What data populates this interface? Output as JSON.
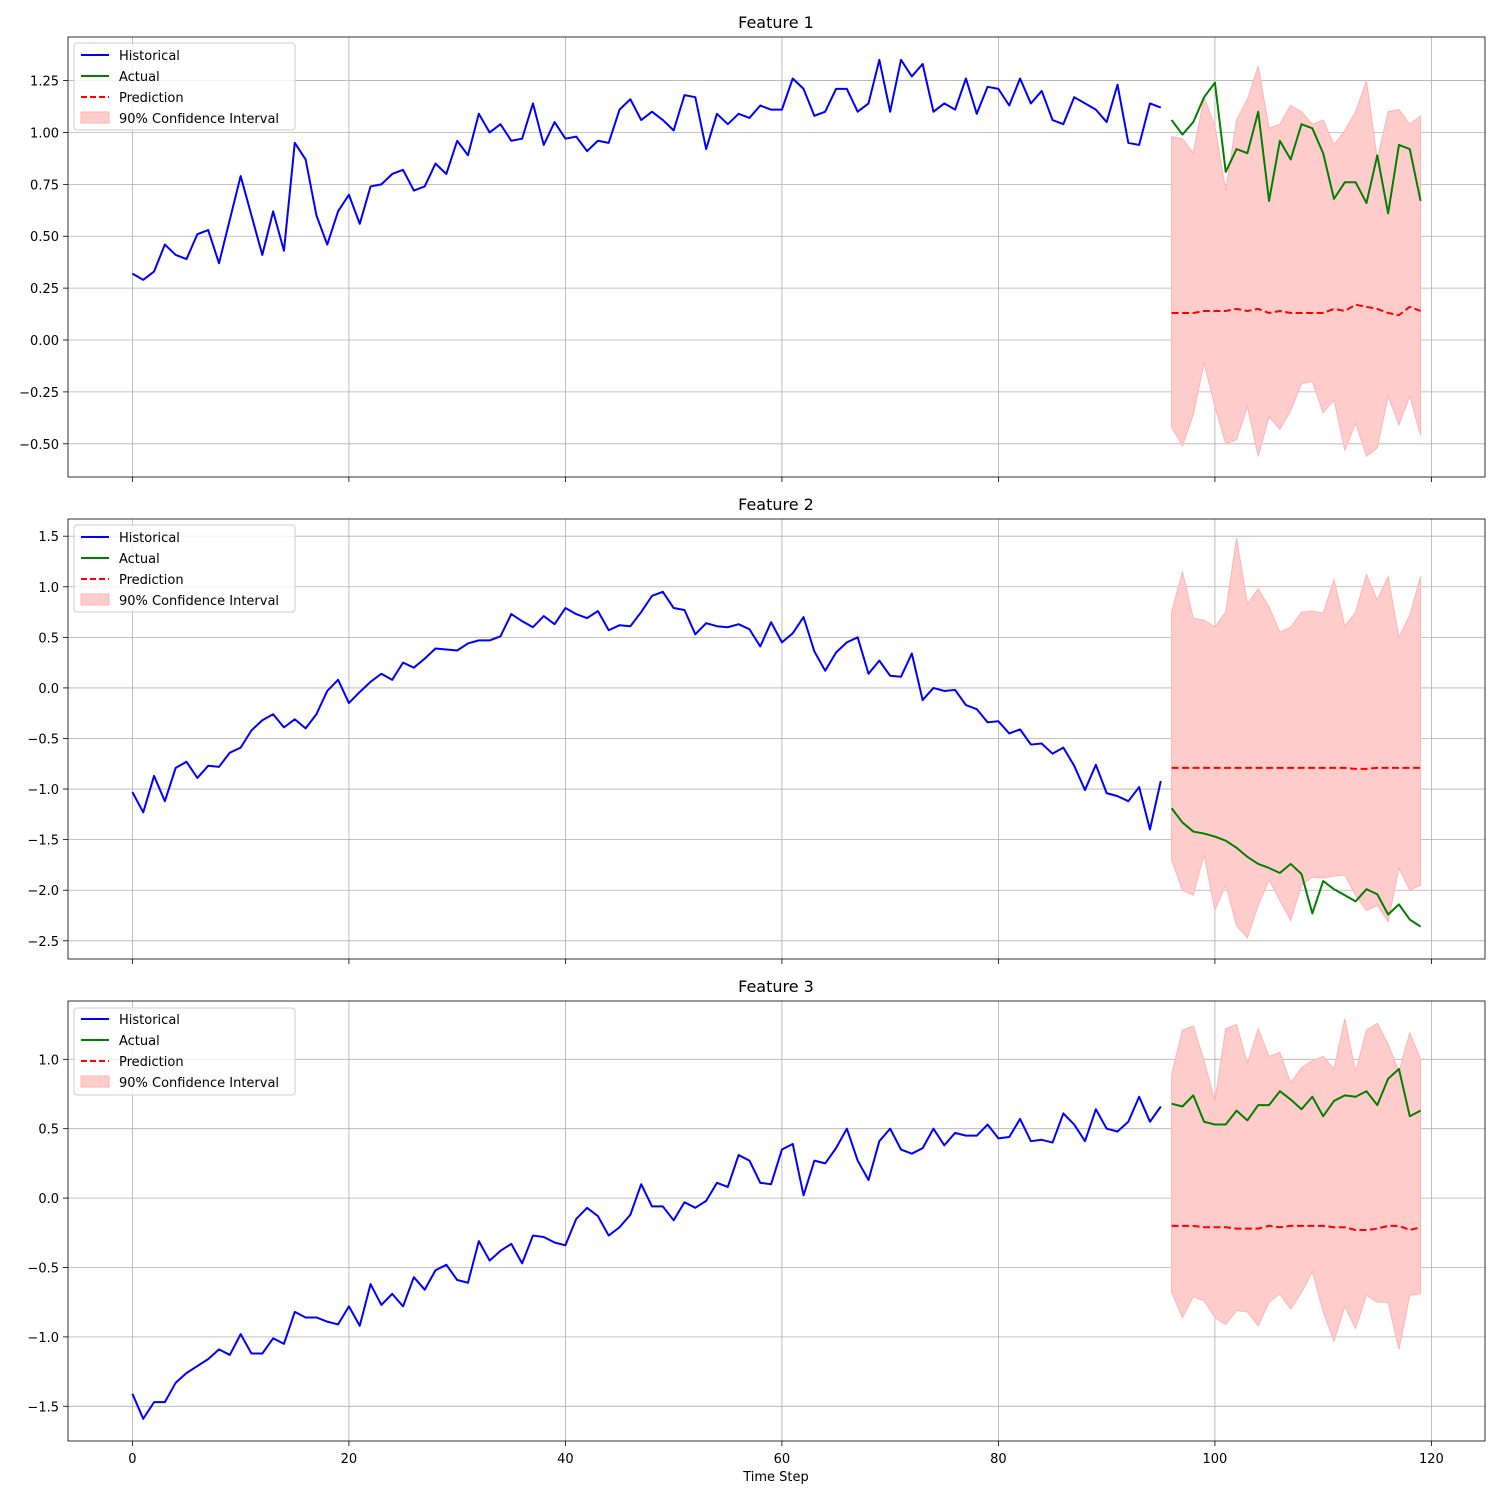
{
  "figure": {
    "xlabel": "Time Step"
  },
  "legend": {
    "historical": "Historical",
    "actual": "Actual",
    "prediction": "Prediction",
    "ci": "90% Confidence Interval"
  },
  "colors": {
    "historical": "#0000ff",
    "actual": "#008000",
    "prediction": "#ff0000",
    "ci_fill": "#ffcccc",
    "grid": "#b0b0b0"
  },
  "chart_data": [
    {
      "type": "line",
      "title": "Feature 1",
      "xlabel": "Time Step",
      "ylabel": "",
      "xlim": [
        -5.95,
        124.95
      ],
      "ylim": [
        -0.66,
        1.46
      ],
      "grid": true,
      "legend_position": "top-left",
      "xticks": [
        0,
        20,
        40,
        60,
        80,
        100,
        120
      ],
      "yticks": [
        -0.5,
        -0.25,
        0.0,
        0.25,
        0.5,
        0.75,
        1.0,
        1.25
      ],
      "ytick_labels": [
        "−0.50",
        "−0.25",
        "0.00",
        "0.25",
        "0.50",
        "0.75",
        "1.00",
        "1.25"
      ],
      "show_xtick_labels": false,
      "historical": {
        "x_start": 0,
        "values": [
          0.32,
          0.29,
          0.33,
          0.46,
          0.41,
          0.39,
          0.51,
          0.53,
          0.37,
          0.58,
          0.79,
          0.6,
          0.41,
          0.62,
          0.43,
          0.95,
          0.87,
          0.6,
          0.46,
          0.62,
          0.7,
          0.56,
          0.74,
          0.75,
          0.8,
          0.82,
          0.72,
          0.74,
          0.85,
          0.8,
          0.96,
          0.89,
          1.09,
          1.0,
          1.04,
          0.96,
          0.97,
          1.14,
          0.94,
          1.05,
          0.97,
          0.98,
          0.91,
          0.96,
          0.95,
          1.11,
          1.16,
          1.06,
          1.1,
          1.06,
          1.01,
          1.18,
          1.17,
          0.92,
          1.09,
          1.04,
          1.09,
          1.07,
          1.13,
          1.11,
          1.11,
          1.26,
          1.21,
          1.08,
          1.1,
          1.21,
          1.21,
          1.1,
          1.14,
          1.35,
          1.1,
          1.35,
          1.27,
          1.33,
          1.1,
          1.14,
          1.11,
          1.26,
          1.09,
          1.22,
          1.21,
          1.13,
          1.26,
          1.14,
          1.2,
          1.06,
          1.04,
          1.17,
          1.14,
          1.11,
          1.05,
          1.23,
          0.95,
          0.94,
          1.14,
          1.12
        ]
      },
      "actual": {
        "x_start": 96,
        "values": [
          1.06,
          0.99,
          1.05,
          1.17,
          1.24,
          0.81,
          0.92,
          0.9,
          1.1,
          0.67,
          0.96,
          0.87,
          1.04,
          1.02,
          0.9,
          0.68,
          0.76,
          0.76,
          0.66,
          0.89,
          0.61,
          0.94,
          0.92,
          0.67
        ]
      },
      "prediction": {
        "x_start": 96,
        "values": [
          0.13,
          0.13,
          0.13,
          0.14,
          0.14,
          0.14,
          0.15,
          0.14,
          0.15,
          0.13,
          0.14,
          0.13,
          0.13,
          0.13,
          0.13,
          0.15,
          0.14,
          0.17,
          0.16,
          0.15,
          0.13,
          0.12,
          0.16,
          0.14
        ]
      },
      "ci_lower": [
        -0.42,
        -0.51,
        -0.36,
        -0.11,
        -0.32,
        -0.5,
        -0.48,
        -0.32,
        -0.56,
        -0.37,
        -0.43,
        -0.34,
        -0.21,
        -0.2,
        -0.35,
        -0.29,
        -0.53,
        -0.4,
        -0.56,
        -0.52,
        -0.27,
        -0.41,
        -0.27,
        -0.46
      ],
      "ci_upper": [
        0.98,
        0.97,
        0.9,
        1.17,
        1.03,
        0.72,
        1.06,
        1.16,
        1.32,
        1.02,
        1.04,
        1.13,
        1.1,
        1.04,
        1.06,
        0.94,
        1.01,
        1.1,
        1.25,
        0.87,
        1.1,
        1.11,
        1.04,
        1.08
      ]
    },
    {
      "type": "line",
      "title": "Feature 2",
      "xlabel": "Time Step",
      "ylabel": "",
      "xlim": [
        -5.95,
        124.95
      ],
      "ylim": [
        -2.68,
        1.67
      ],
      "grid": true,
      "legend_position": "top-left",
      "xticks": [
        0,
        20,
        40,
        60,
        80,
        100,
        120
      ],
      "yticks": [
        -2.5,
        -2.0,
        -1.5,
        -1.0,
        -0.5,
        0.0,
        0.5,
        1.0,
        1.5
      ],
      "ytick_labels": [
        "−2.5",
        "−2.0",
        "−1.5",
        "−1.0",
        "−0.5",
        "0.0",
        "0.5",
        "1.0",
        "1.5"
      ],
      "show_xtick_labels": false,
      "historical": {
        "x_start": 0,
        "values": [
          -1.03,
          -1.23,
          -0.87,
          -1.12,
          -0.79,
          -0.73,
          -0.89,
          -0.77,
          -0.78,
          -0.64,
          -0.59,
          -0.42,
          -0.32,
          -0.26,
          -0.39,
          -0.31,
          -0.4,
          -0.26,
          -0.03,
          0.08,
          -0.15,
          -0.04,
          0.06,
          0.14,
          0.08,
          0.25,
          0.2,
          0.29,
          0.39,
          0.38,
          0.37,
          0.44,
          0.47,
          0.47,
          0.51,
          0.73,
          0.66,
          0.6,
          0.71,
          0.63,
          0.79,
          0.73,
          0.69,
          0.76,
          0.57,
          0.62,
          0.61,
          0.75,
          0.91,
          0.95,
          0.79,
          0.77,
          0.53,
          0.64,
          0.61,
          0.6,
          0.63,
          0.58,
          0.41,
          0.65,
          0.45,
          0.54,
          0.7,
          0.36,
          0.17,
          0.35,
          0.45,
          0.5,
          0.14,
          0.27,
          0.12,
          0.11,
          0.34,
          -0.12,
          0.0,
          -0.03,
          -0.02,
          -0.17,
          -0.21,
          -0.34,
          -0.33,
          -0.45,
          -0.41,
          -0.56,
          -0.55,
          -0.65,
          -0.59,
          -0.77,
          -1.01,
          -0.76,
          -1.04,
          -1.07,
          -1.12,
          -0.98,
          -1.4,
          -0.92
        ]
      },
      "actual": {
        "x_start": 96,
        "values": [
          -1.19,
          -1.33,
          -1.42,
          -1.44,
          -1.47,
          -1.51,
          -1.58,
          -1.67,
          -1.74,
          -1.78,
          -1.83,
          -1.74,
          -1.84,
          -2.23,
          -1.91,
          -1.99,
          -2.05,
          -2.11,
          -1.99,
          -2.04,
          -2.24,
          -2.14,
          -2.29,
          -2.36
        ]
      },
      "prediction": {
        "x_start": 96,
        "values": [
          -0.79,
          -0.79,
          -0.79,
          -0.79,
          -0.79,
          -0.79,
          -0.79,
          -0.79,
          -0.79,
          -0.79,
          -0.79,
          -0.79,
          -0.79,
          -0.79,
          -0.79,
          -0.79,
          -0.79,
          -0.8,
          -0.8,
          -0.79,
          -0.79,
          -0.79,
          -0.79,
          -0.79
        ]
      },
      "ci_lower": [
        -1.7,
        -2.0,
        -2.05,
        -1.65,
        -2.2,
        -1.95,
        -2.35,
        -2.47,
        -2.15,
        -1.9,
        -2.1,
        -2.3,
        -1.95,
        -1.87,
        -1.88,
        -1.86,
        -1.85,
        -2.05,
        -2.2,
        -2.15,
        -2.31,
        -1.78,
        -2.0,
        -1.95
      ],
      "ci_upper": [
        0.75,
        1.15,
        0.69,
        0.67,
        0.6,
        0.75,
        1.48,
        0.83,
        0.98,
        0.8,
        0.55,
        0.6,
        0.75,
        0.76,
        0.74,
        1.07,
        0.61,
        0.75,
        1.12,
        0.87,
        1.1,
        0.5,
        0.72,
        1.1
      ]
    },
    {
      "type": "line",
      "title": "Feature 3",
      "xlabel": "Time Step",
      "ylabel": "",
      "xlim": [
        -5.95,
        124.95
      ],
      "ylim": [
        -1.75,
        1.42
      ],
      "grid": true,
      "legend_position": "top-left",
      "xticks": [
        0,
        20,
        40,
        60,
        80,
        100,
        120
      ],
      "yticks": [
        -1.5,
        -1.0,
        -0.5,
        0.0,
        0.5,
        1.0
      ],
      "ytick_labels": [
        "−1.5",
        "−1.0",
        "−0.5",
        "0.0",
        "0.5",
        "1.0"
      ],
      "show_xtick_labels": true,
      "historical": {
        "x_start": 0,
        "values": [
          -1.41,
          -1.59,
          -1.47,
          -1.47,
          -1.33,
          -1.26,
          -1.21,
          -1.16,
          -1.09,
          -1.13,
          -0.98,
          -1.12,
          -1.12,
          -1.01,
          -1.05,
          -0.82,
          -0.86,
          -0.86,
          -0.89,
          -0.91,
          -0.78,
          -0.92,
          -0.62,
          -0.77,
          -0.69,
          -0.78,
          -0.57,
          -0.66,
          -0.52,
          -0.48,
          -0.59,
          -0.61,
          -0.31,
          -0.45,
          -0.38,
          -0.33,
          -0.47,
          -0.27,
          -0.28,
          -0.32,
          -0.34,
          -0.15,
          -0.07,
          -0.13,
          -0.27,
          -0.21,
          -0.12,
          0.1,
          -0.06,
          -0.06,
          -0.16,
          -0.03,
          -0.07,
          -0.02,
          0.11,
          0.08,
          0.31,
          0.27,
          0.11,
          0.1,
          0.35,
          0.39,
          0.02,
          0.27,
          0.25,
          0.36,
          0.5,
          0.27,
          0.13,
          0.41,
          0.5,
          0.35,
          0.32,
          0.36,
          0.5,
          0.38,
          0.47,
          0.45,
          0.45,
          0.53,
          0.43,
          0.44,
          0.57,
          0.41,
          0.42,
          0.4,
          0.61,
          0.53,
          0.41,
          0.64,
          0.5,
          0.48,
          0.55,
          0.73,
          0.55,
          0.66
        ]
      },
      "actual": {
        "x_start": 96,
        "values": [
          0.68,
          0.66,
          0.74,
          0.55,
          0.53,
          0.53,
          0.63,
          0.56,
          0.67,
          0.67,
          0.77,
          0.71,
          0.64,
          0.73,
          0.59,
          0.7,
          0.74,
          0.73,
          0.77,
          0.67,
          0.86,
          0.93,
          0.59,
          0.63
        ]
      },
      "prediction": {
        "x_start": 96,
        "values": [
          -0.2,
          -0.2,
          -0.2,
          -0.21,
          -0.21,
          -0.21,
          -0.22,
          -0.22,
          -0.22,
          -0.2,
          -0.21,
          -0.2,
          -0.2,
          -0.2,
          -0.2,
          -0.21,
          -0.21,
          -0.23,
          -0.23,
          -0.22,
          -0.2,
          -0.2,
          -0.23,
          -0.21
        ]
      },
      "ci_lower": [
        -0.68,
        -0.86,
        -0.71,
        -0.74,
        -0.86,
        -0.91,
        -0.81,
        -0.82,
        -0.92,
        -0.75,
        -0.69,
        -0.8,
        -0.68,
        -0.53,
        -0.82,
        -1.03,
        -0.78,
        -0.94,
        -0.7,
        -0.75,
        -0.75,
        -1.09,
        -0.7,
        -0.69
      ],
      "ci_upper": [
        0.89,
        1.21,
        1.24,
        0.99,
        0.7,
        1.22,
        1.25,
        0.97,
        1.22,
        1.02,
        1.05,
        0.83,
        0.94,
        0.99,
        1.02,
        0.93,
        1.29,
        0.91,
        1.21,
        1.26,
        1.11,
        0.91,
        1.19,
        1.0
      ]
    }
  ]
}
